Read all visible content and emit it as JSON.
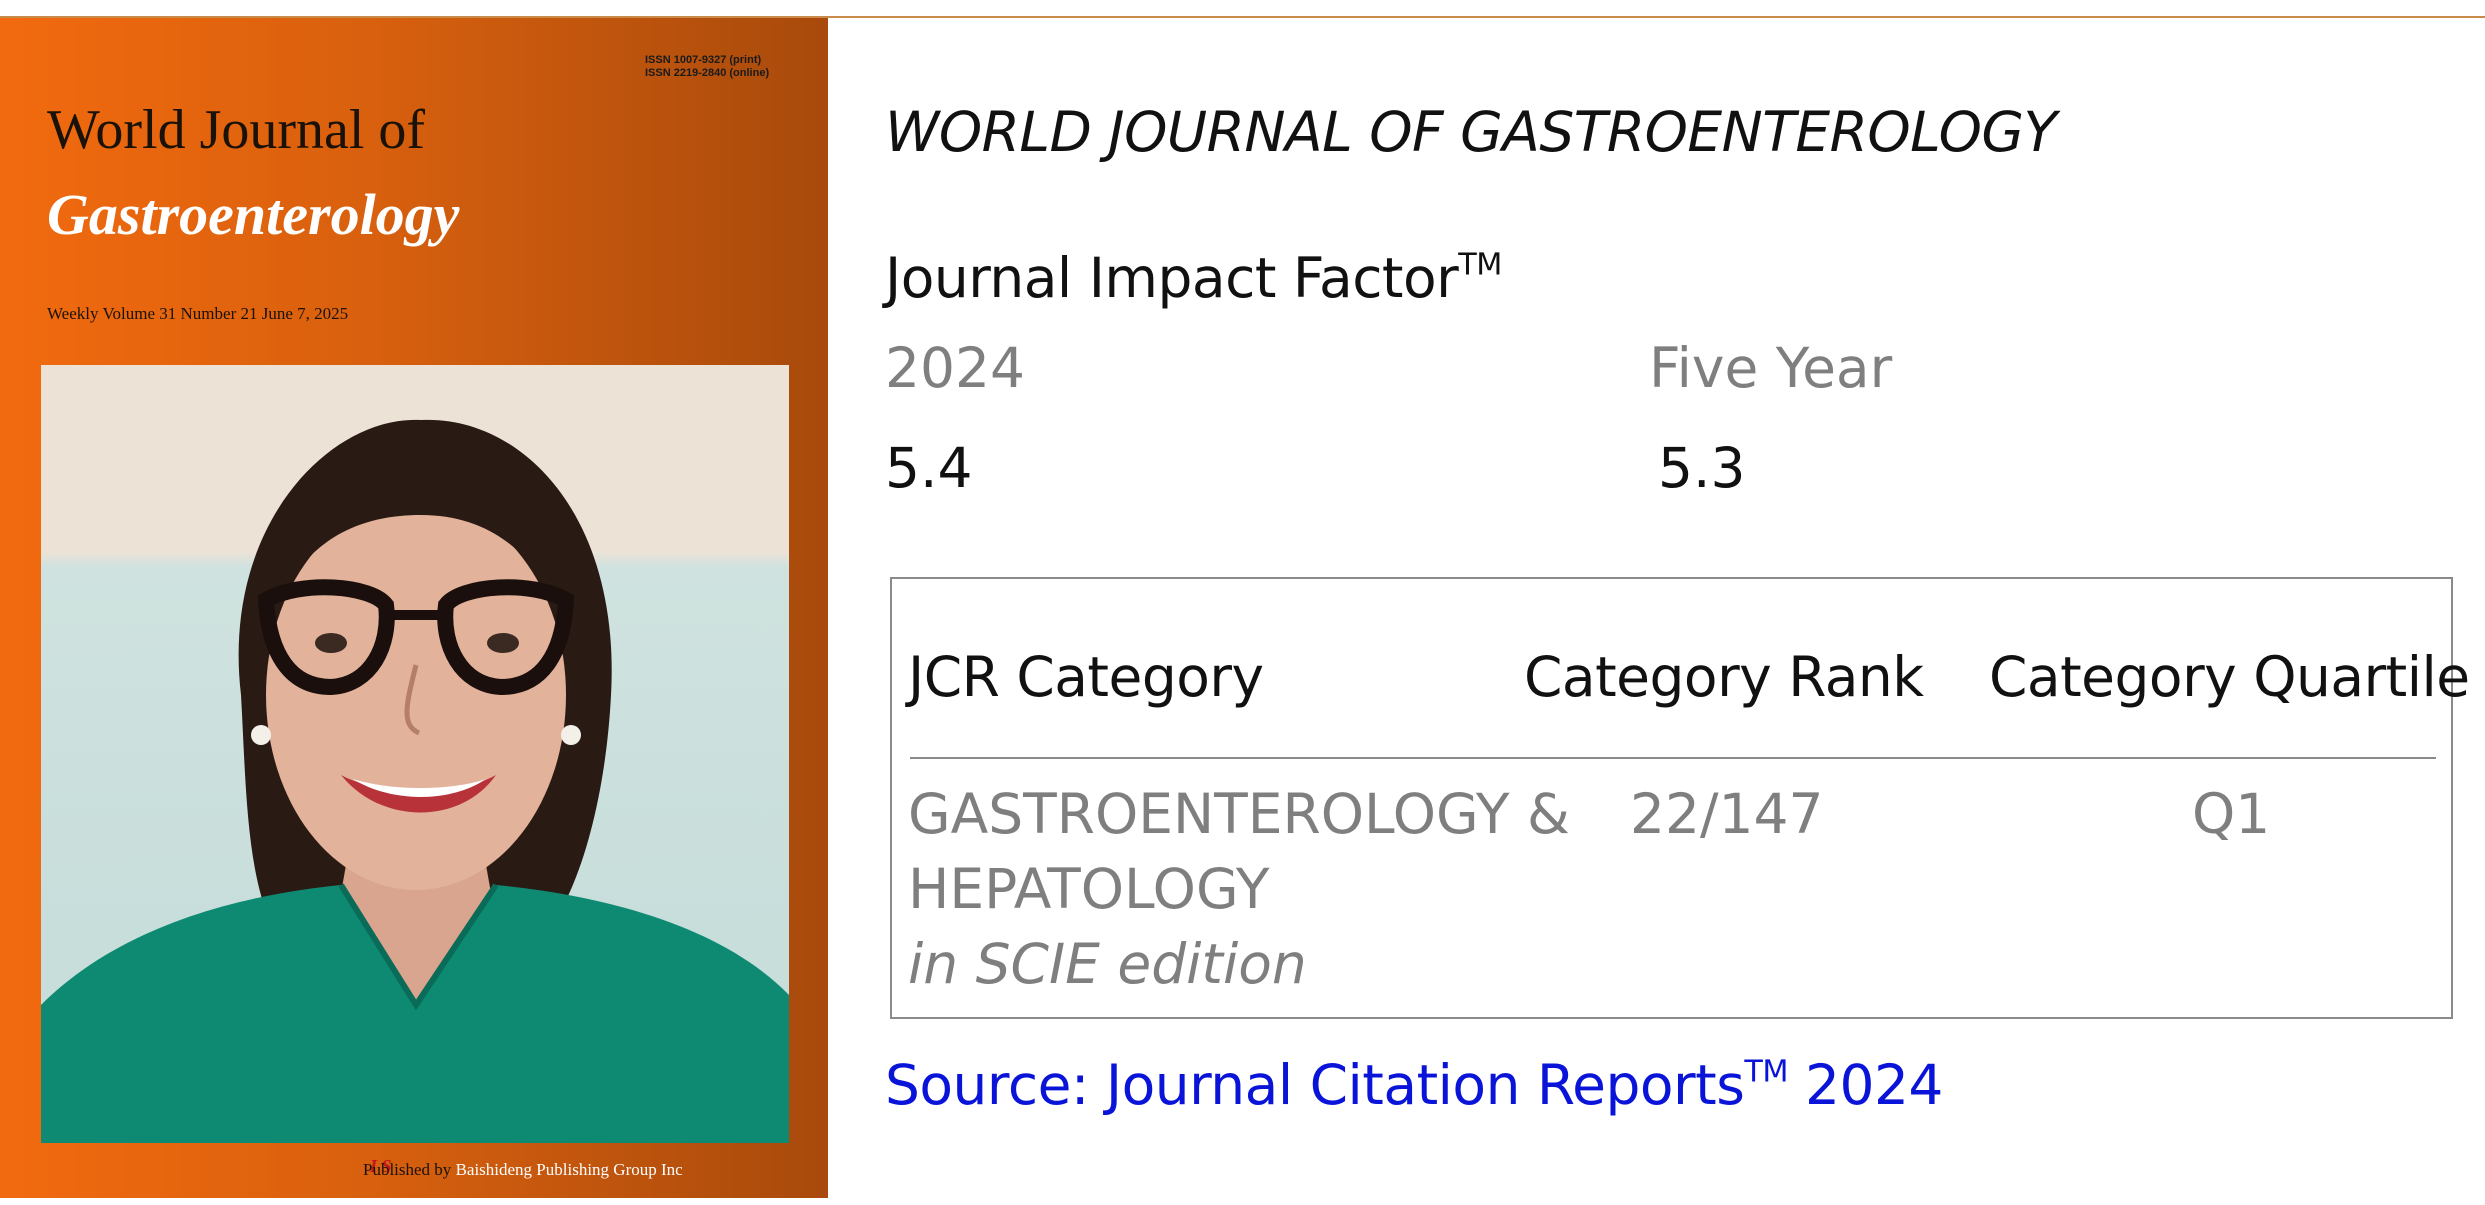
{
  "cover": {
    "issn_print": "ISSN 1007-9327 (print)",
    "issn_online": "ISSN 2219-2840 (online)",
    "title_line1": "World Journal of",
    "title_line2": "Gastroenterology",
    "issue": "Weekly Volume 31 Number 21 June 7, 2025",
    "published_by": "Published by",
    "publisher": "Baishideng Publishing Group Inc"
  },
  "info": {
    "journal_name": "WORLD JOURNAL OF GASTROENTEROLOGY",
    "jif_title": "Journal Impact Factor",
    "tm": "TM",
    "year_label": "2024",
    "five_year_label": "Five Year",
    "year_value": "5.4",
    "five_year_value": "5.3"
  },
  "jcr_table": {
    "headers": [
      "JCR Category",
      "Category Rank",
      "Category Quartile"
    ],
    "row": {
      "category_line1": "GASTROENTEROLOGY &",
      "category_line2": "HEPATOLOGY",
      "edition": "in SCIE edition",
      "rank": "22/147",
      "quartile": "Q1"
    }
  },
  "source": {
    "prefix": "Source: Journal Citation Reports",
    "tm": "TM",
    "year": "2024"
  },
  "colors": {
    "cover_orange": "#f26a0f",
    "source_blue": "#0a14d8",
    "muted_gray": "#7f7f7f",
    "frame": "#c98b4a"
  }
}
